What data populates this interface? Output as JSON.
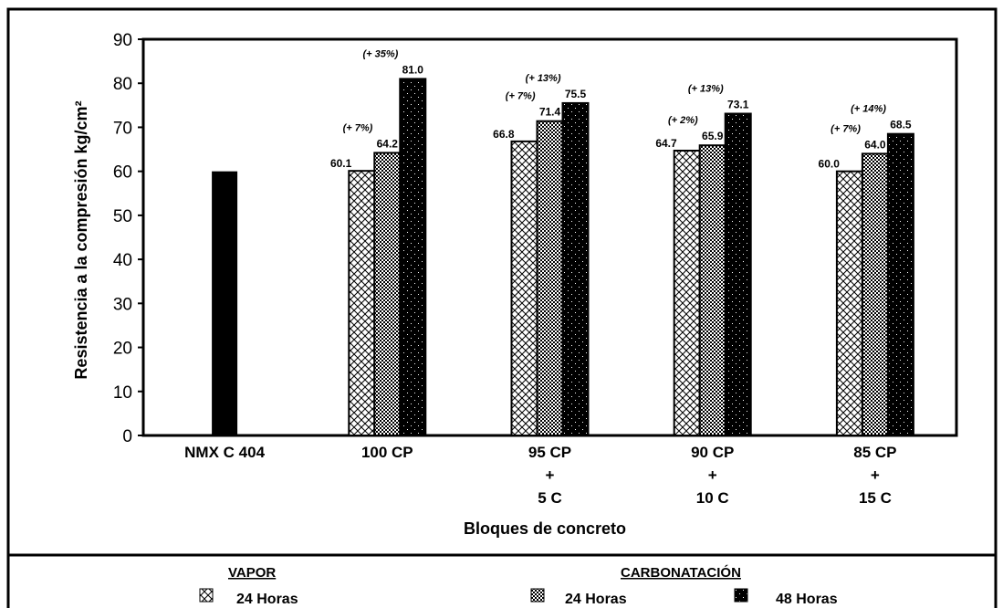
{
  "chart_data": {
    "type": "bar",
    "xlabel": "Bloques de concreto",
    "ylabel": "Resistencia a la compresión kg/cm²",
    "ylim": [
      0,
      90
    ],
    "yticks": [
      0,
      10,
      20,
      30,
      40,
      50,
      60,
      70,
      80,
      90
    ],
    "grid": false,
    "legend_position": "bottom",
    "categories": [
      {
        "lines": [
          "NMX C 404"
        ]
      },
      {
        "lines": [
          "100 CP"
        ]
      },
      {
        "lines": [
          "95 CP",
          "+",
          "5 C"
        ]
      },
      {
        "lines": [
          "90 CP",
          "+",
          "10 C"
        ]
      },
      {
        "lines": [
          "85 CP",
          "+",
          "15 C"
        ]
      }
    ],
    "reference": {
      "category_index": 0,
      "value": 60
    },
    "series": [
      {
        "name": "24 Horas",
        "group": "VAPOR",
        "pattern": "crosshatch",
        "values": [
          null,
          60.1,
          66.8,
          64.7,
          60.0
        ],
        "labels": [
          null,
          "60.1",
          "66.8",
          "64.7",
          "60.0"
        ],
        "pct": [
          null,
          null,
          null,
          null,
          null
        ]
      },
      {
        "name": "24 Horas",
        "group": "CARBONATACIÓN",
        "pattern": "checker",
        "values": [
          null,
          64.2,
          71.4,
          65.9,
          64.0
        ],
        "labels": [
          null,
          "64.2",
          "71.4",
          "65.9",
          "64.0"
        ],
        "pct": [
          null,
          "(+ 7%)",
          "(+ 7%)",
          "(+ 2%)",
          "(+ 7%)"
        ]
      },
      {
        "name": "48 Horas",
        "group": "CARBONATACIÓN",
        "pattern": "dots",
        "values": [
          null,
          81.0,
          75.5,
          73.1,
          68.5
        ],
        "labels": [
          null,
          "81.0",
          "75.5",
          "73.1",
          "68.5"
        ],
        "pct": [
          null,
          "(+ 35%)",
          "(+ 13%)",
          "(+ 13%)",
          "(+ 14%)"
        ]
      }
    ],
    "legend": {
      "group_vapor": "VAPOR",
      "group_carbonatacion": "CARBONATACIÓN",
      "items": [
        "24 Horas",
        "24 Horas",
        "48 Horas"
      ]
    },
    "colors": {
      "bar": "#000000",
      "background": "#ffffff"
    }
  }
}
